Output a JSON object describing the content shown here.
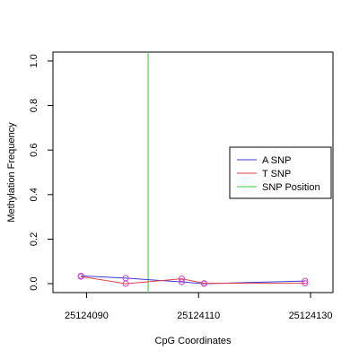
{
  "chart_data": {
    "type": "line",
    "xlabel": "CpG Coordinates",
    "ylabel": "Methylation Frequency",
    "xlim": [
      25124084,
      25124134
    ],
    "ylim": [
      -0.04,
      1.04
    ],
    "x_ticks": [
      25124090,
      25124110,
      25124130
    ],
    "x_tick_labels": [
      "25124090",
      "25124110",
      "25124130"
    ],
    "y_ticks": [
      0.0,
      0.2,
      0.4,
      0.6,
      0.8,
      1.0
    ],
    "y_tick_labels": [
      "0.0",
      "0.2",
      "0.4",
      "0.6",
      "0.8",
      "1.0"
    ],
    "grid": false,
    "legend_position": "right",
    "series": [
      {
        "name": "A SNP",
        "color": "#3b3bd6",
        "x": [
          25124089,
          25124097,
          25124107,
          25124111,
          25124129
        ],
        "y": [
          0.035,
          0.025,
          0.008,
          0.0,
          0.012
        ]
      },
      {
        "name": "T SNP",
        "color": "#e04040",
        "x": [
          25124089,
          25124097,
          25124107,
          25124111,
          25124129
        ],
        "y": [
          0.032,
          0.0,
          0.022,
          0.002,
          0.002
        ]
      }
    ],
    "snp_position": {
      "name": "SNP Position",
      "color": "#33cc33",
      "x": 25124101
    },
    "marker_color": "#d040d0"
  }
}
